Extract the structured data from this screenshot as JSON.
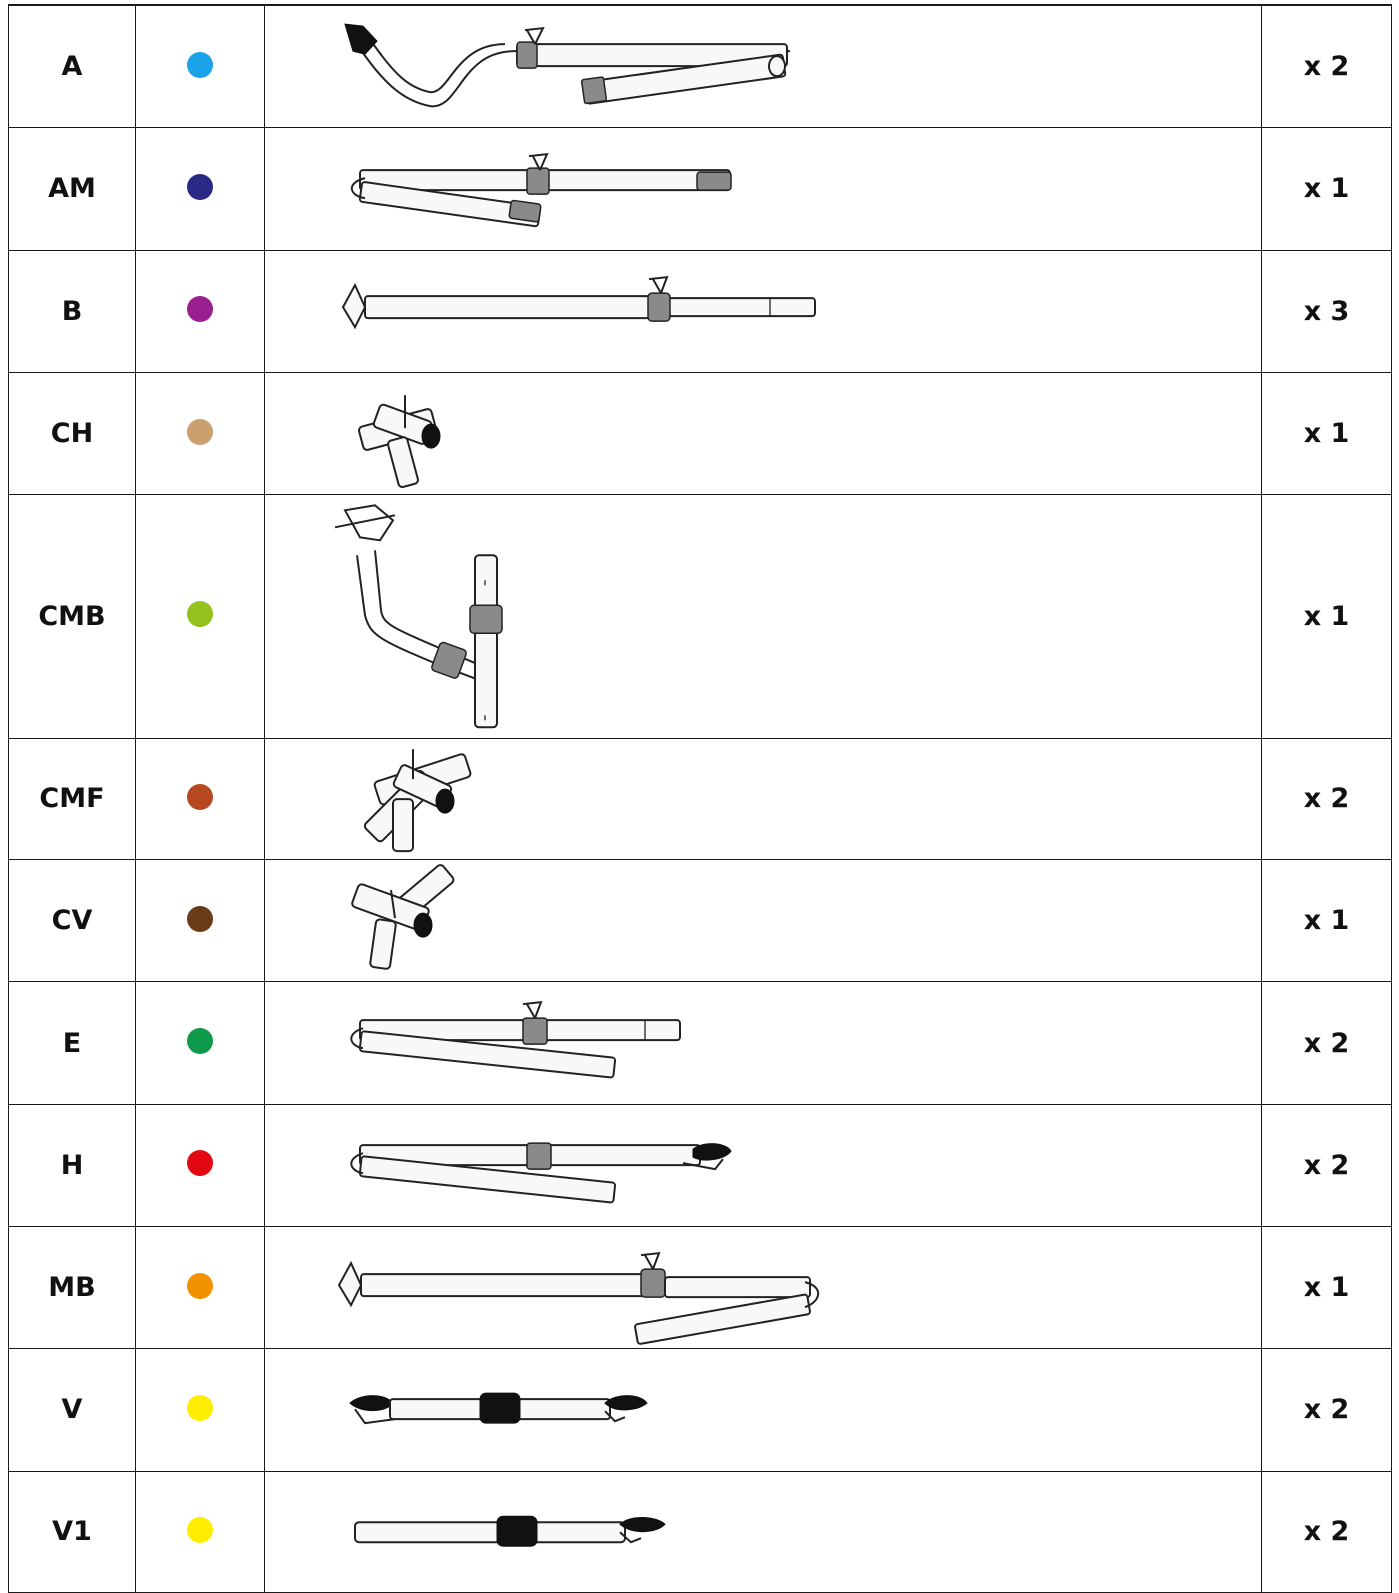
{
  "parts": [
    {
      "code": "A",
      "color": "#1aa3e8",
      "qty": "x 2",
      "icon": "arched-telescopic-pole-icon"
    },
    {
      "code": "AM",
      "color": "#2a2a86",
      "qty": "x 1",
      "icon": "folding-telescopic-pole-icon"
    },
    {
      "code": "B",
      "color": "#9a1f8f",
      "qty": "x 3",
      "icon": "footed-telescopic-pole-icon"
    },
    {
      "code": "CH",
      "color": "#c9a06e",
      "qty": "x 1",
      "icon": "three-way-connector-icon"
    },
    {
      "code": "CMB",
      "color": "#95c11f",
      "qty": "x 1",
      "icon": "bent-connector-pole-icon"
    },
    {
      "code": "CMF",
      "color": "#b5481f",
      "qty": "x 2",
      "icon": "four-way-connector-icon"
    },
    {
      "code": "CV",
      "color": "#6b3a17",
      "qty": "x 1",
      "icon": "angled-connector-icon"
    },
    {
      "code": "E",
      "color": "#0e9a4a",
      "qty": "x 2",
      "icon": "folding-pole-icon"
    },
    {
      "code": "H",
      "color": "#e30613",
      "qty": "x 2",
      "icon": "folding-pole-with-clip-icon"
    },
    {
      "code": "MB",
      "color": "#f39200",
      "qty": "x 1",
      "icon": "footed-folding-pole-icon"
    },
    {
      "code": "V",
      "color": "#ffed00",
      "qty": "x 2",
      "icon": "double-clip-tension-pole-icon"
    },
    {
      "code": "V1",
      "color": "#ffed00",
      "qty": "x 2",
      "icon": "single-clip-tension-pole-icon"
    }
  ]
}
